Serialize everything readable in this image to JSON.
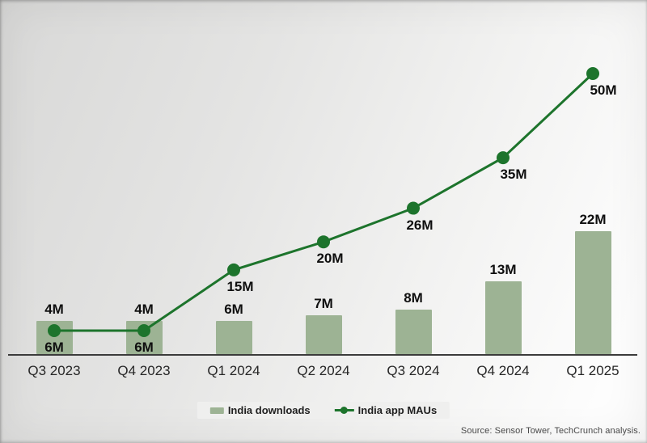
{
  "chart_data": {
    "type": "bar",
    "subtype": "bar-and-line-combo",
    "title": "",
    "categories": [
      "Q3 2023",
      "Q4 2023",
      "Q1 2024",
      "Q2 2024",
      "Q3 2024",
      "Q4 2024",
      "Q1 2025"
    ],
    "series": [
      {
        "name": "India downloads",
        "type": "bar",
        "values": [
          4,
          4,
          6,
          7,
          8,
          13,
          22
        ],
        "labels": [
          "4M",
          "4M",
          "6M",
          "7M",
          "8M",
          "13M",
          "22M"
        ],
        "color": "#9db394"
      },
      {
        "name": "India app MAUs",
        "type": "line",
        "values": [
          6,
          6,
          15,
          20,
          26,
          35,
          50
        ],
        "labels": [
          "6M",
          "6M",
          "15M",
          "20M",
          "26M",
          "35M",
          "50M"
        ],
        "color": "#1d742c"
      }
    ],
    "unit": "millions",
    "ylim": [
      0,
      52
    ],
    "grid": false,
    "yaxis_visible": false,
    "legend_position": "bottom-center",
    "annotations": "every bar and line point carries its own bold data label"
  },
  "legend": {
    "items": [
      {
        "label": "India downloads",
        "swatch": "bar-swatch",
        "color": "#9db394"
      },
      {
        "label": "India app MAUs",
        "swatch": "line-dot-swatch",
        "color": "#1d742c"
      }
    ]
  },
  "footer": {
    "source": "Source: Sensor Tower, TechCrunch analysis."
  },
  "colors": {
    "bar": "#9db394",
    "line": "#1d742c",
    "axis": "#3b3b3b",
    "value_label": "#0f0f0f",
    "category_label": "#262626",
    "legend_bg": "#efefee",
    "source_text": "#484848"
  }
}
